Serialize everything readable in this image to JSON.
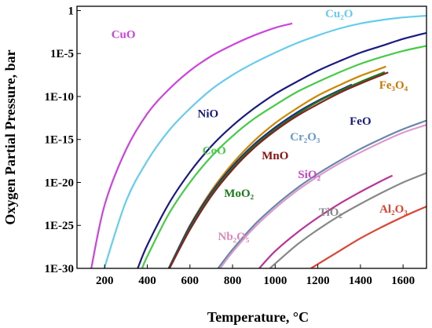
{
  "chart_data": {
    "type": "line",
    "title": "",
    "xlabel": "Temperature, °C",
    "ylabel": "Oxygen Partial Pressure, bar",
    "xlim": [
      70,
      1710
    ],
    "ylim": [
      -30,
      0.5
    ],
    "yscale": "log",
    "xticks": [
      200,
      400,
      600,
      800,
      1000,
      1200,
      1400,
      1600
    ],
    "yticks": [
      {
        "exp": 0,
        "label": "1"
      },
      {
        "exp": -5,
        "label": "1E-5"
      },
      {
        "exp": -10,
        "label": "1E-10"
      },
      {
        "exp": -15,
        "label": "1E-15"
      },
      {
        "exp": -20,
        "label": "1E-20"
      },
      {
        "exp": -25,
        "label": "1E-25"
      },
      {
        "exp": -30,
        "label": "1E-30"
      }
    ],
    "grid": false,
    "legend": "inline labels",
    "series": [
      {
        "name": "CuO",
        "color": "#cc44dd",
        "points": [
          [
            137,
            -30
          ],
          [
            200,
            -22.6
          ],
          [
            300,
            -16.2
          ],
          [
            400,
            -12
          ],
          [
            500,
            -9.2
          ],
          [
            600,
            -7
          ],
          [
            700,
            -5.3
          ],
          [
            800,
            -4
          ],
          [
            900,
            -2.9
          ],
          [
            1000,
            -2
          ],
          [
            1080,
            -1.5
          ]
        ],
        "label_at": [
          288,
          -3.2
        ],
        "label_color": "#cc44dd"
      },
      {
        "name": "Cu₂O",
        "color": "#66ccee",
        "points": [
          [
            198,
            -30
          ],
          [
            300,
            -22.2
          ],
          [
            400,
            -17.5
          ],
          [
            500,
            -14
          ],
          [
            600,
            -11.4
          ],
          [
            700,
            -9.2
          ],
          [
            800,
            -7.5
          ],
          [
            900,
            -6.1
          ],
          [
            1000,
            -4.9
          ],
          [
            1100,
            -3.8
          ],
          [
            1200,
            -2.9
          ],
          [
            1300,
            -2.1
          ],
          [
            1400,
            -1.5
          ],
          [
            1500,
            -1.1
          ],
          [
            1600,
            -0.8
          ],
          [
            1710,
            -0.6
          ]
        ],
        "label_at": [
          1300,
          -0.8
        ],
        "label_color": "#66ccee"
      },
      {
        "name": "NiO",
        "color": "#1a1a80",
        "points": [
          [
            355,
            -30
          ],
          [
            400,
            -27.3
          ],
          [
            500,
            -22.5
          ],
          [
            600,
            -18.8
          ],
          [
            700,
            -15.8
          ],
          [
            800,
            -13.4
          ],
          [
            900,
            -11.4
          ],
          [
            1000,
            -9.7
          ],
          [
            1100,
            -8.3
          ],
          [
            1200,
            -7
          ],
          [
            1300,
            -5.9
          ],
          [
            1400,
            -4.9
          ],
          [
            1500,
            -4.1
          ],
          [
            1600,
            -3.3
          ],
          [
            1710,
            -2.6
          ]
        ],
        "label_at": [
          685,
          -12.4
        ],
        "label_color": "#1a1a80"
      },
      {
        "name": "CoO",
        "color": "#44cc44",
        "points": [
          [
            376,
            -30
          ],
          [
            400,
            -28.6
          ],
          [
            500,
            -23.7
          ],
          [
            600,
            -20
          ],
          [
            700,
            -17
          ],
          [
            800,
            -14.6
          ],
          [
            900,
            -12.6
          ],
          [
            1000,
            -11
          ],
          [
            1100,
            -9.5
          ],
          [
            1200,
            -8.3
          ],
          [
            1300,
            -7.2
          ],
          [
            1400,
            -6.2
          ],
          [
            1500,
            -5.4
          ],
          [
            1600,
            -4.7
          ],
          [
            1710,
            -4.1
          ]
        ],
        "label_at": [
          714,
          -16.7
        ],
        "label_color": "#44cc44"
      },
      {
        "name": "Fe₃O₄",
        "color": "#cc8800",
        "points": [
          [
            502,
            -30
          ],
          [
            600,
            -25
          ],
          [
            700,
            -21
          ],
          [
            800,
            -17.8
          ],
          [
            900,
            -15.2
          ],
          [
            1000,
            -13.1
          ],
          [
            1100,
            -11.4
          ],
          [
            1200,
            -9.9
          ],
          [
            1300,
            -8.7
          ],
          [
            1400,
            -7.6
          ],
          [
            1500,
            -6.7
          ],
          [
            1520,
            -6.5
          ]
        ],
        "label_at": [
          1555,
          -9.1
        ],
        "label_color": "#cc7700"
      },
      {
        "name": "FeO",
        "color": "#222299",
        "points": [
          [
            500,
            -30
          ],
          [
            600,
            -25.1
          ],
          [
            700,
            -21.2
          ],
          [
            800,
            -18.1
          ],
          [
            900,
            -15.6
          ],
          [
            1000,
            -13.6
          ],
          [
            1100,
            -11.9
          ],
          [
            1200,
            -10.5
          ],
          [
            1300,
            -9.3
          ],
          [
            1360,
            -8.6
          ]
        ],
        "label_at": [
          1400,
          -13.3
        ],
        "label_color": "#1a1a80"
      },
      {
        "name": "MoO₂",
        "color": "#1a7a1a",
        "points": [
          [
            502,
            -30
          ],
          [
            600,
            -25.3
          ],
          [
            700,
            -21.4
          ],
          [
            800,
            -18.3
          ],
          [
            900,
            -15.8
          ],
          [
            1000,
            -13.8
          ],
          [
            1100,
            -12.1
          ],
          [
            1200,
            -10.6
          ],
          [
            1300,
            -9.4
          ],
          [
            1400,
            -8.3
          ],
          [
            1500,
            -7.3
          ],
          [
            1510,
            -7.2
          ]
        ],
        "label_at": [
          830,
          -21.7
        ],
        "label_color": "#1a7a1a"
      },
      {
        "name": "MnO",
        "color": "#882222",
        "points": [
          [
            504,
            -30
          ],
          [
            600,
            -25.5
          ],
          [
            700,
            -21.6
          ],
          [
            800,
            -18.5
          ],
          [
            900,
            -16
          ],
          [
            1000,
            -14
          ],
          [
            1100,
            -12.3
          ],
          [
            1200,
            -10.9
          ],
          [
            1300,
            -9.6
          ],
          [
            1400,
            -8.5
          ],
          [
            1500,
            -7.5
          ],
          [
            1530,
            -7.2
          ]
        ],
        "label_at": [
          1000,
          -17.3
        ],
        "label_color": "#881111"
      },
      {
        "name": "Cr₂O₃",
        "color": "#6688aa",
        "points": [
          [
            732,
            -30
          ],
          [
            800,
            -27.8
          ],
          [
            900,
            -25
          ],
          [
            1000,
            -22.7
          ],
          [
            1100,
            -20.7
          ],
          [
            1200,
            -19
          ],
          [
            1300,
            -17.5
          ],
          [
            1400,
            -16.1
          ],
          [
            1500,
            -14.9
          ],
          [
            1600,
            -13.8
          ],
          [
            1710,
            -12.8
          ]
        ],
        "label_at": [
          1140,
          -15.1
        ],
        "label_color": "#6699cc"
      },
      {
        "name": "Nb₂O₅",
        "color": "#dd99cc",
        "points": [
          [
            742,
            -30
          ],
          [
            800,
            -28.1
          ],
          [
            900,
            -25.3
          ],
          [
            1000,
            -23
          ],
          [
            1100,
            -21
          ],
          [
            1200,
            -19.3
          ],
          [
            1300,
            -17.8
          ],
          [
            1400,
            -16.5
          ],
          [
            1500,
            -15.3
          ],
          [
            1600,
            -14.2
          ],
          [
            1710,
            -13.3
          ]
        ],
        "label_at": [
          805,
          -26.7
        ],
        "label_color": "#dd88bb"
      },
      {
        "name": "SiO₂",
        "color": "#bb3399",
        "points": [
          [
            925,
            -30
          ],
          [
            1000,
            -28
          ],
          [
            1100,
            -25.9
          ],
          [
            1200,
            -24.1
          ],
          [
            1300,
            -22.5
          ],
          [
            1400,
            -21.1
          ],
          [
            1500,
            -19.8
          ],
          [
            1550,
            -19.2
          ]
        ],
        "label_at": [
          1160,
          -19.5
        ],
        "label_color": "#cc44cc"
      },
      {
        "name": "TiO₂",
        "color": "#888888",
        "points": [
          [
            975,
            -30
          ],
          [
            1100,
            -27.3
          ],
          [
            1200,
            -25.5
          ],
          [
            1300,
            -23.9
          ],
          [
            1400,
            -22.5
          ],
          [
            1500,
            -21.2
          ],
          [
            1600,
            -20
          ],
          [
            1710,
            -18.9
          ]
        ],
        "label_at": [
          1260,
          -23.9
        ],
        "label_color": "#888888"
      },
      {
        "name": "Al₂O₃",
        "color": "#dd4433",
        "points": [
          [
            1168,
            -30
          ],
          [
            1300,
            -28
          ],
          [
            1400,
            -26.5
          ],
          [
            1500,
            -25.2
          ],
          [
            1600,
            -24
          ],
          [
            1710,
            -22.8
          ]
        ],
        "label_at": [
          1555,
          -23.5
        ],
        "label_color": "#dd4433"
      }
    ]
  }
}
